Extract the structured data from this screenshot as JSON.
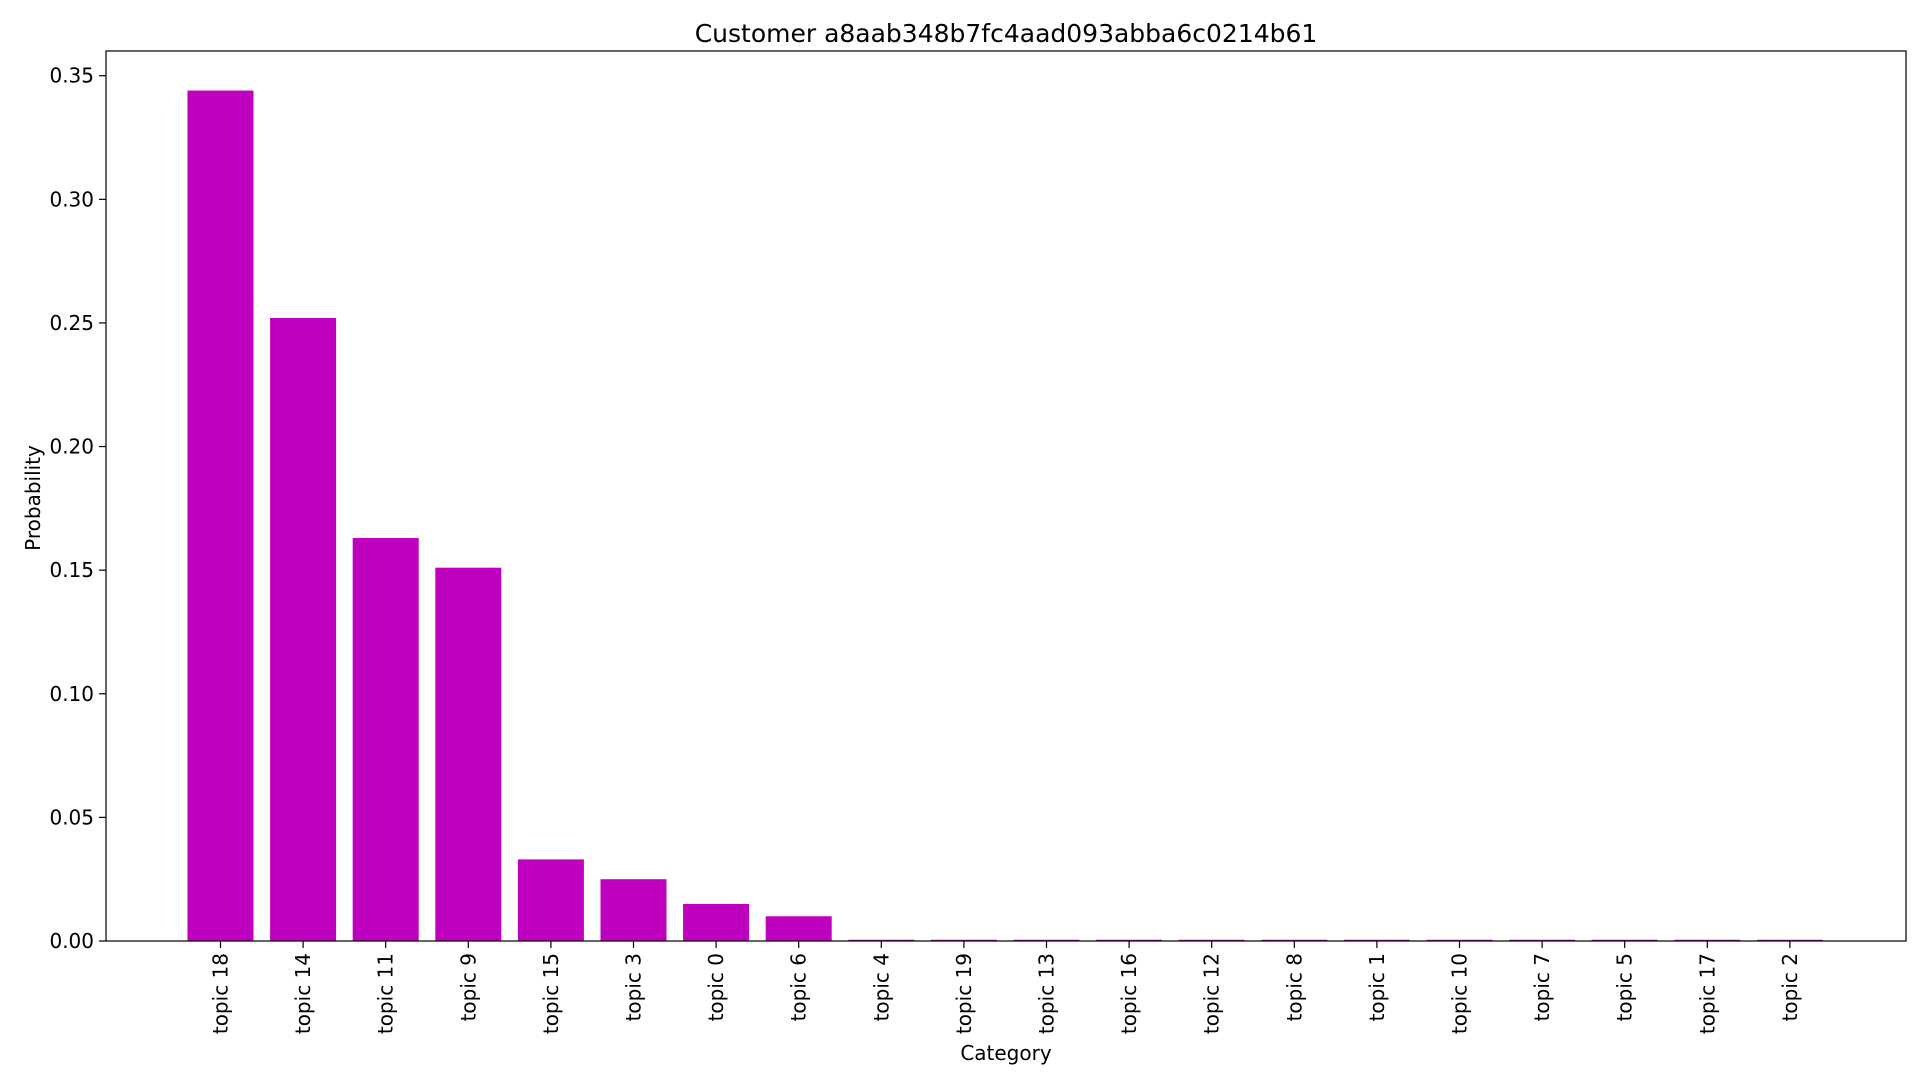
{
  "chart_data": {
    "type": "bar",
    "title": "Customer a8aab348b7fc4aad093abba6c0214b61",
    "xlabel": "Category",
    "ylabel": "Probability",
    "categories": [
      "topic 18",
      "topic 14",
      "topic 11",
      "topic 9",
      "topic 15",
      "topic 3",
      "topic 0",
      "topic 6",
      "topic 4",
      "topic 19",
      "topic 13",
      "topic 16",
      "topic 12",
      "topic 8",
      "topic 1",
      "topic 10",
      "topic 7",
      "topic 5",
      "topic 17",
      "topic 2"
    ],
    "values": [
      0.344,
      0.252,
      0.163,
      0.151,
      0.033,
      0.025,
      0.015,
      0.01,
      0.0005,
      0.0005,
      0.0005,
      0.0005,
      0.0005,
      0.0005,
      0.0005,
      0.0005,
      0.0005,
      0.0005,
      0.0005,
      0.0005
    ],
    "ylim": [
      0,
      0.36
    ],
    "yticks": [
      0.0,
      0.05,
      0.1,
      0.15,
      0.2,
      0.25,
      0.3,
      0.35
    ],
    "ytick_labels": [
      "0.00",
      "0.05",
      "0.10",
      "0.15",
      "0.20",
      "0.25",
      "0.30",
      "0.35"
    ],
    "bar_color": "#bf00bf",
    "grid": false,
    "legend": "none"
  }
}
